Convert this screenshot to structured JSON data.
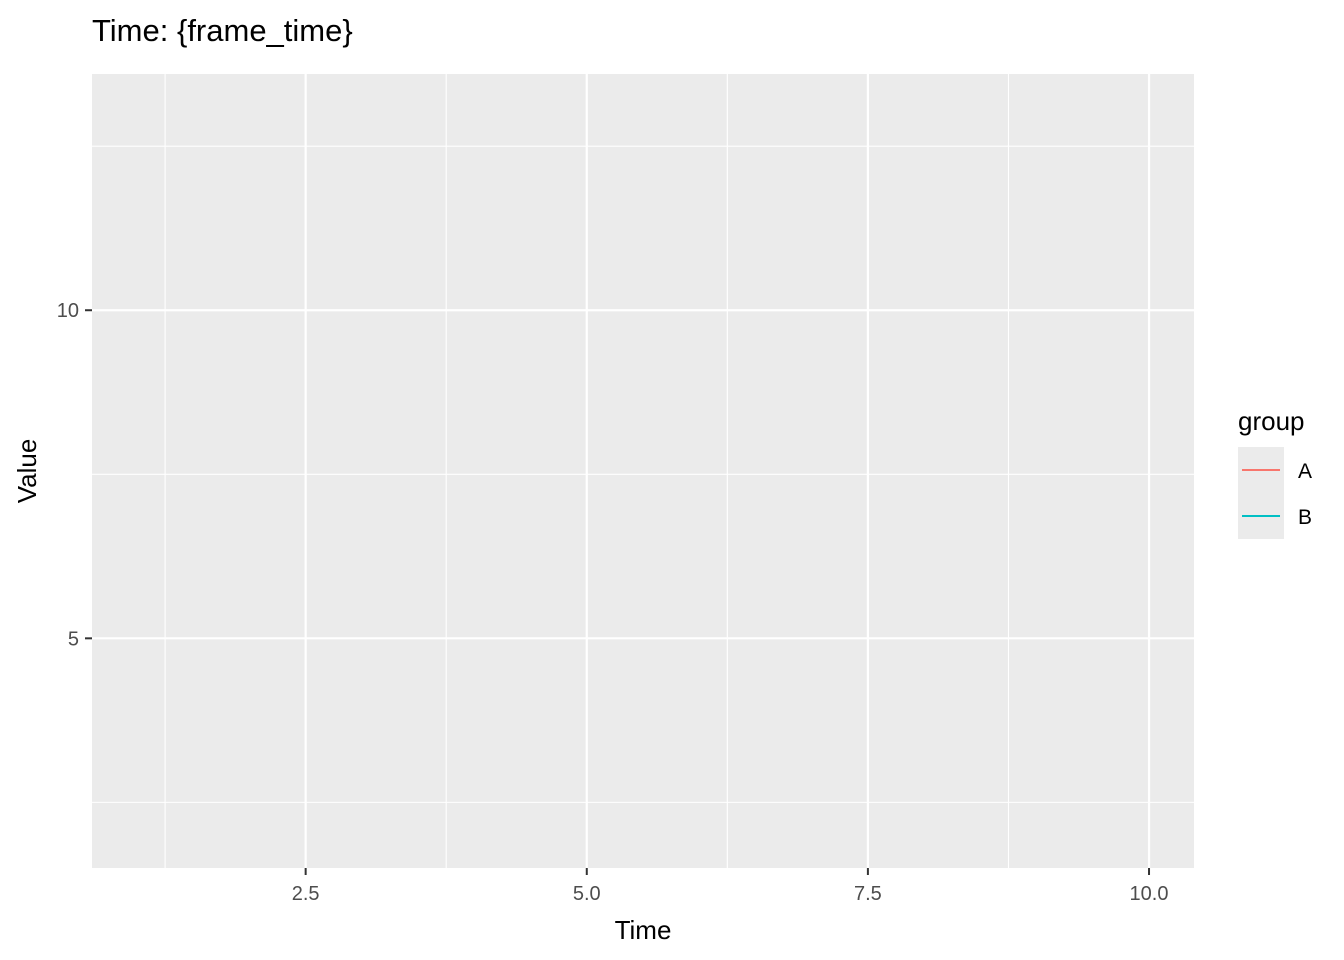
{
  "chart_data": {
    "type": "line",
    "title": "Time: {frame_time}",
    "xlabel": "Time",
    "ylabel": "Value",
    "xlim": [
      0.6,
      10.4
    ],
    "ylim": [
      1.5,
      13.6
    ],
    "x_major_ticks": [
      2.5,
      5.0,
      7.5,
      10.0
    ],
    "x_tick_labels": [
      "2.5",
      "5.0",
      "7.5",
      "10.0"
    ],
    "x_minor_ticks": [
      1.25,
      3.75,
      6.25,
      8.75
    ],
    "y_major_ticks": [
      5,
      10
    ],
    "y_tick_labels": [
      "5",
      "10"
    ],
    "y_minor_ticks": [
      2.5,
      7.5,
      12.5
    ],
    "grid": true,
    "legend": {
      "title": "group",
      "position": "right",
      "entries": [
        {
          "label": "A",
          "color": "#F8766D"
        },
        {
          "label": "B",
          "color": "#00BFC4"
        }
      ]
    },
    "series": [
      {
        "name": "A",
        "color": "#F8766D",
        "x": [],
        "y": []
      },
      {
        "name": "B",
        "color": "#00BFC4",
        "x": [],
        "y": []
      }
    ],
    "panel_background": "#EBEBEB",
    "grid_color": "#FFFFFF",
    "tick_color": "#333333"
  }
}
